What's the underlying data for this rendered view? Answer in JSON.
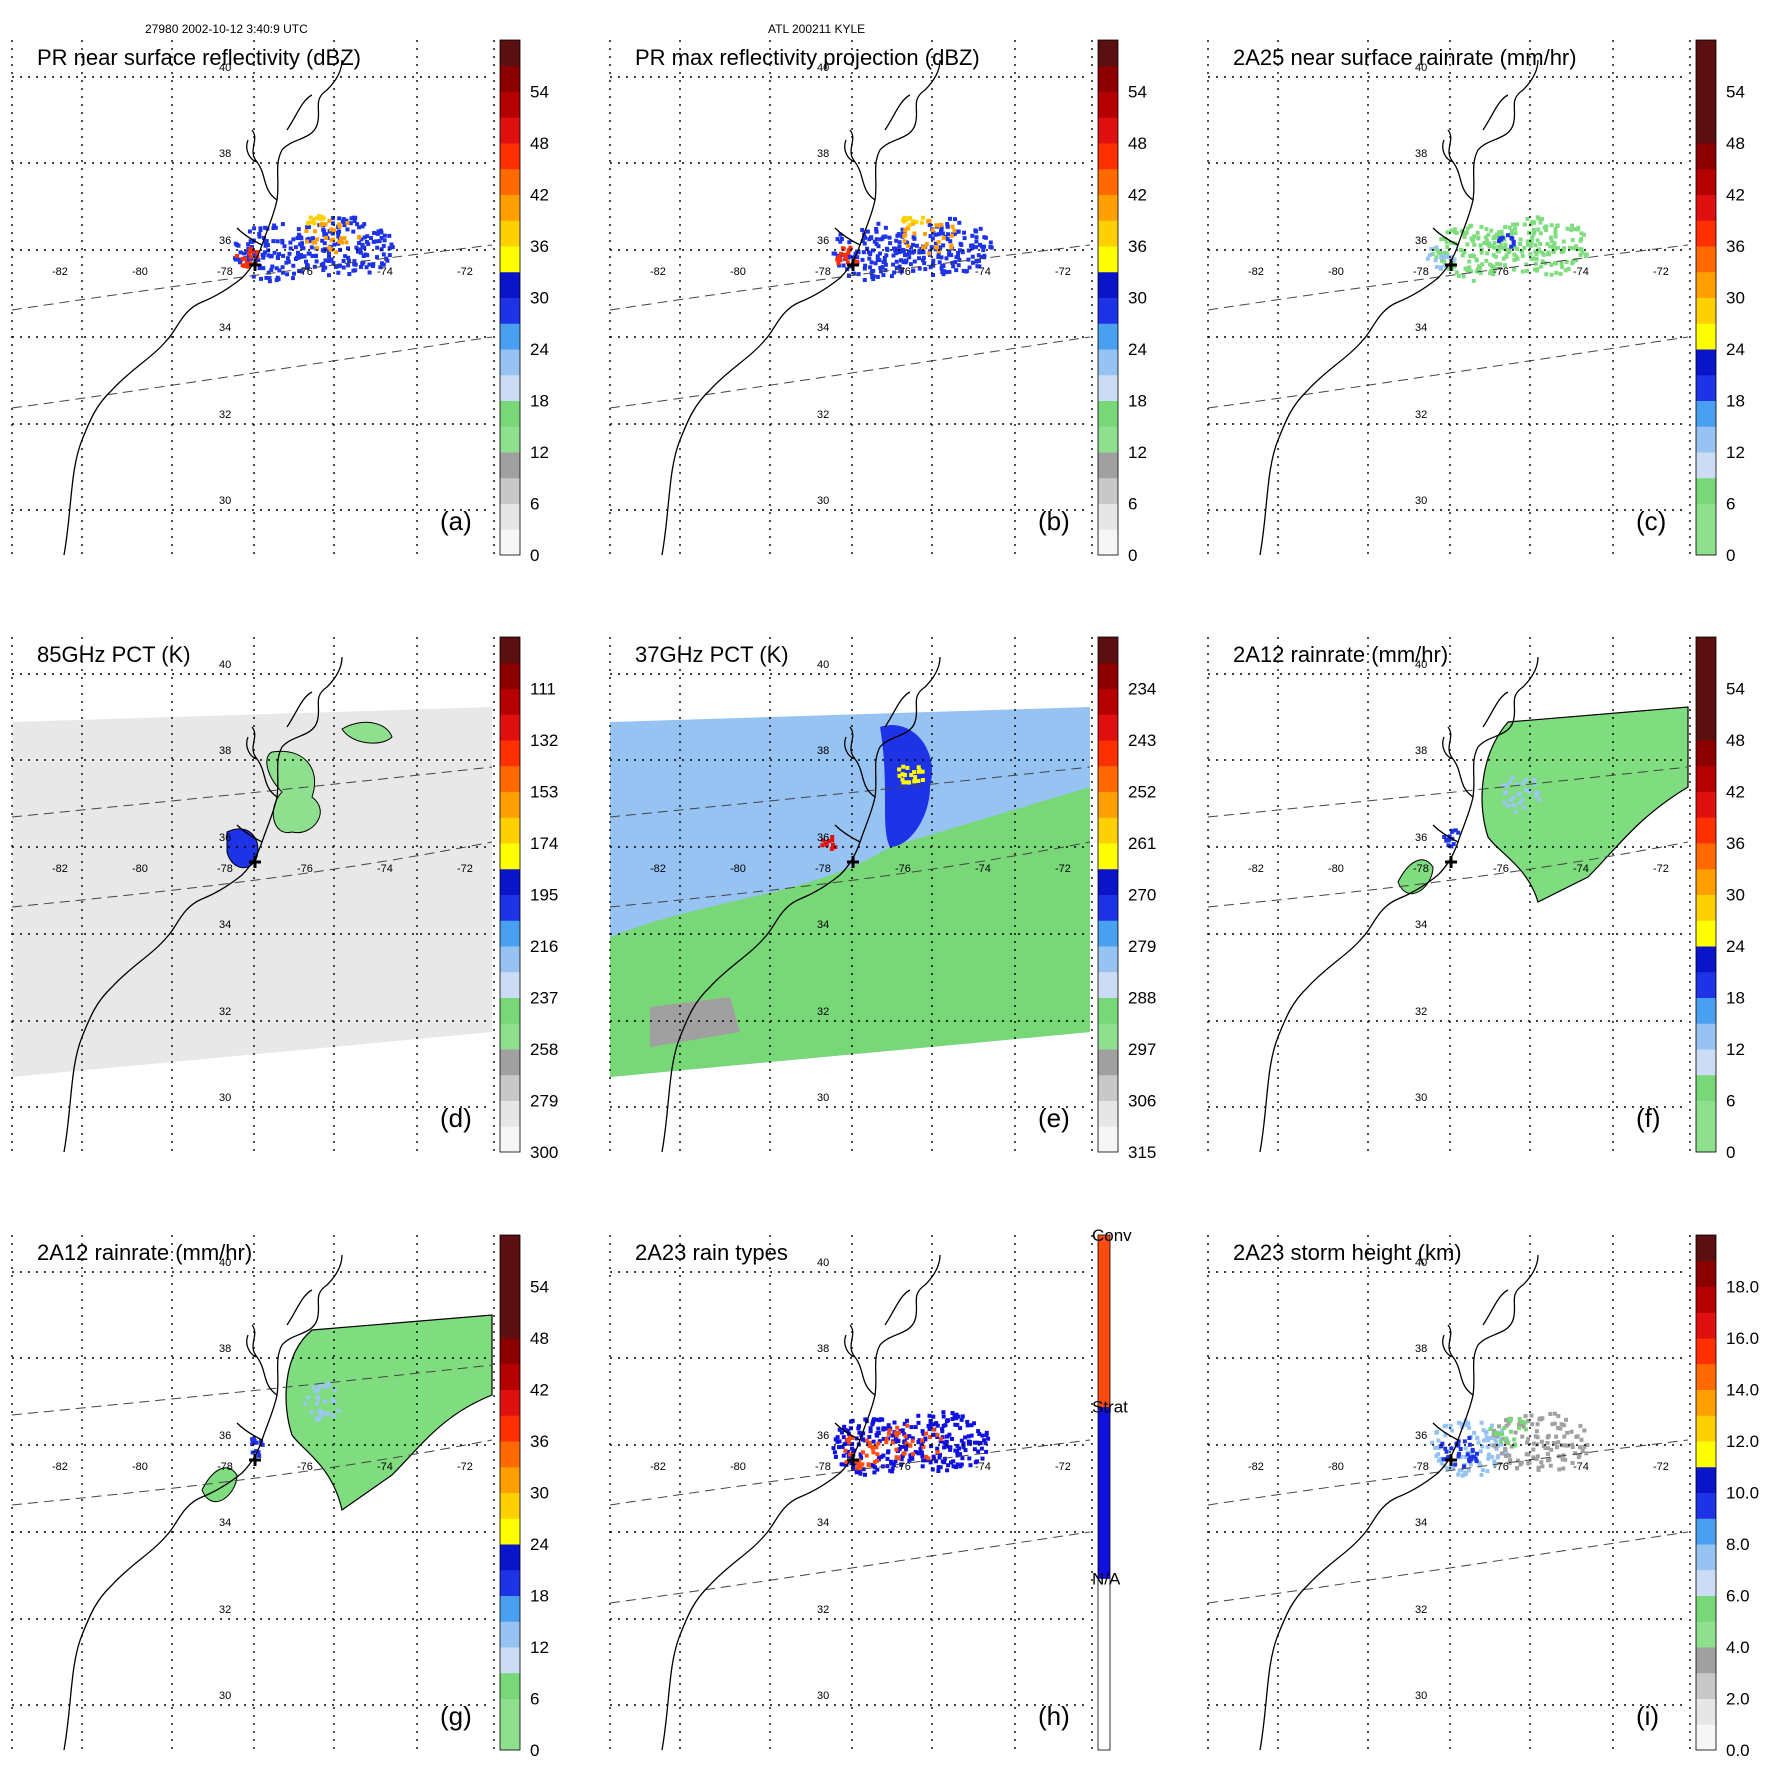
{
  "header": {
    "left": "27980 2002-10-12 3:40:9 UTC",
    "center": "ATL 200211 KYLE"
  },
  "lat_ticks": [
    "40",
    "38",
    "36",
    "34",
    "32",
    "30"
  ],
  "lon_ticks": [
    "-82",
    "-80",
    "-78",
    "-76",
    "-74",
    "-72"
  ],
  "colors": {
    "ramp": [
      "#f6f6f6",
      "#e6e6e6",
      "#c8c8c8",
      "#a0a0a0",
      "#8ee08e",
      "#78d878",
      "#cddcf5",
      "#96c3f2",
      "#4aa0f0",
      "#1e32e6",
      "#0a14c8",
      "#ffff00",
      "#ffd000",
      "#ffa000",
      "#ff6a00",
      "#ff3000",
      "#e01010",
      "#b40000",
      "#8c0000",
      "#5a1010"
    ],
    "conv": "#ff4a10",
    "strat": "#1010e0",
    "na": "#ffffff",
    "rain_green": "#7fdc7f",
    "rain_blue": "#1e32e6",
    "rain_light": "#9cc6f4"
  },
  "panels": [
    {
      "id": "a",
      "title": "PR near surface reflectivity (dBZ)",
      "label": "(a)",
      "ticks": [
        "0",
        "6",
        "12",
        "18",
        "24",
        "30",
        "36",
        "42",
        "48",
        "54"
      ],
      "scale": "z0"
    },
    {
      "id": "b",
      "title": "PR max reflectivity projection (dBZ)",
      "label": "(b)",
      "ticks": [
        "0",
        "6",
        "12",
        "18",
        "24",
        "30",
        "36",
        "42",
        "48",
        "54"
      ],
      "scale": "z0"
    },
    {
      "id": "c",
      "title": "2A25 near surface rainrate (mm/hr)",
      "label": "(c)",
      "ticks": [
        "0",
        "6",
        "12",
        "18",
        "24",
        "30",
        "36",
        "42",
        "48",
        "54"
      ],
      "scale": "r0"
    },
    {
      "id": "d",
      "title": "85GHz PCT (K)",
      "label": "(d)",
      "ticks": [
        "300",
        "279",
        "258",
        "237",
        "216",
        "195",
        "174",
        "153",
        "132",
        "111"
      ],
      "scale": "z0"
    },
    {
      "id": "e",
      "title": "37GHz PCT (K)",
      "label": "(e)",
      "ticks": [
        "315",
        "306",
        "297",
        "288",
        "279",
        "270",
        "261",
        "252",
        "243",
        "234"
      ],
      "scale": "z0"
    },
    {
      "id": "f",
      "title": "2A12 rainrate (mm/hr)",
      "label": "(f)",
      "ticks": [
        "0",
        "6",
        "12",
        "18",
        "24",
        "30",
        "36",
        "42",
        "48",
        "54"
      ],
      "scale": "r0"
    },
    {
      "id": "g",
      "title": "2A12 rainrate (mm/hr)",
      "label": "(g)",
      "ticks": [
        "0",
        "6",
        "12",
        "18",
        "24",
        "30",
        "36",
        "42",
        "48",
        "54"
      ],
      "scale": "r0"
    },
    {
      "id": "h",
      "title": "2A23 rain types",
      "label": "(h)",
      "ticks": [
        "N/A",
        "Strat",
        "Conv"
      ],
      "scale": "types"
    },
    {
      "id": "i",
      "title": "2A23 storm height (km)",
      "label": "(i)",
      "ticks": [
        "0.0",
        "2.0",
        "4.0",
        "6.0",
        "8.0",
        "10.0",
        "12.0",
        "14.0",
        "16.0",
        "18.0"
      ],
      "scale": "h0"
    }
  ]
}
